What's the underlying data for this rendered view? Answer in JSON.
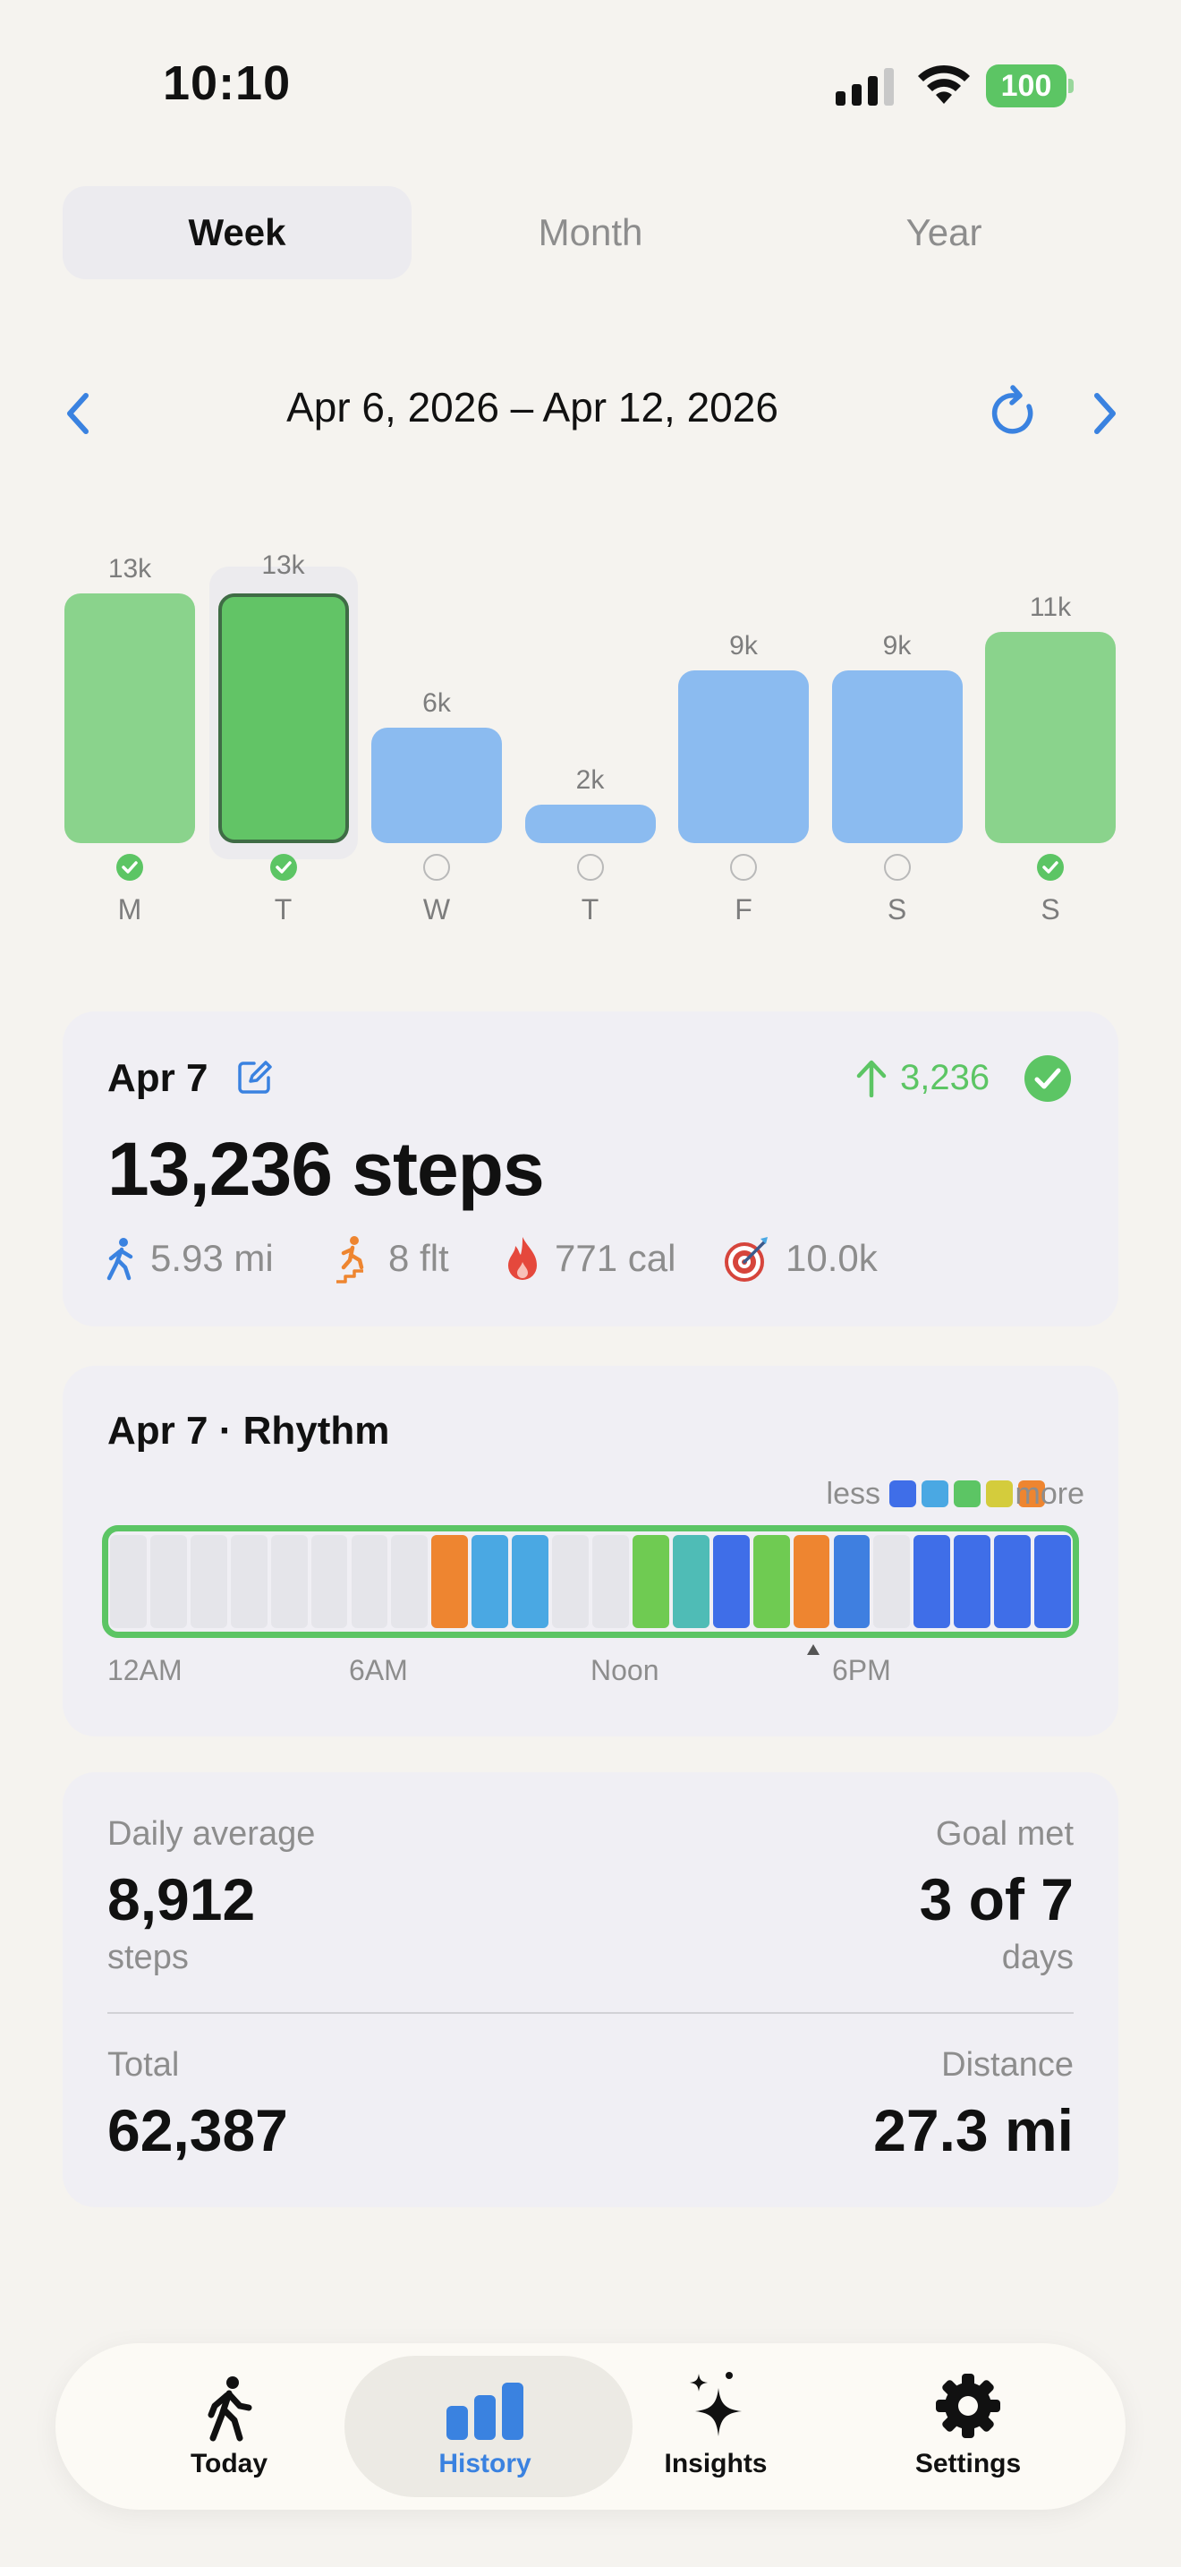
{
  "status": {
    "time": "10:10",
    "battery": "100"
  },
  "periods": [
    "Week",
    "Month",
    "Year"
  ],
  "active_period": "Week",
  "date_range": "Apr 6, 2026 – Apr 12, 2026",
  "chart_data": {
    "type": "bar",
    "categories": [
      "M",
      "T",
      "W",
      "T",
      "F",
      "S",
      "S"
    ],
    "values": [
      13,
      13,
      6,
      2,
      9,
      9,
      11
    ],
    "value_labels": [
      "13k",
      "13k",
      "6k",
      "2k",
      "9k",
      "9k",
      "11k"
    ],
    "goal_met": [
      true,
      true,
      false,
      false,
      false,
      false,
      true
    ],
    "selected_index": 1,
    "ylim": [
      0,
      14
    ]
  },
  "day_card": {
    "date": "Apr 7",
    "delta": "3,236",
    "steps": "13,236 steps",
    "distance": "5.93 mi",
    "floors": "8 flt",
    "calories": "771 cal",
    "goal": "10.0k"
  },
  "rhythm": {
    "title": "Apr 7 · Rhythm",
    "legend_less": "less",
    "legend_more": "more",
    "legend_colors": [
      "#3f6ee8",
      "#4aa8e3",
      "#5cc564",
      "#d4cc3c",
      "#ee8530"
    ],
    "levels": [
      0,
      0,
      0,
      0,
      0,
      0,
      0,
      0,
      5,
      2,
      2,
      0,
      0,
      3,
      2.5,
      1,
      3,
      5,
      1.5,
      0,
      1,
      1,
      1,
      1
    ],
    "axis_labels": [
      "12AM",
      "6AM",
      "Noon",
      "6PM"
    ]
  },
  "summary": {
    "daily_avg_label": "Daily average",
    "daily_avg_value": "8,912",
    "daily_avg_unit": "steps",
    "goal_met_label": "Goal met",
    "goal_met_value": "3 of 7",
    "goal_met_unit": "days",
    "total_label": "Total",
    "total_value": "62,387",
    "distance_label": "Distance",
    "distance_value": "27.3 mi"
  },
  "tabs": [
    "Today",
    "History",
    "Insights",
    "Settings"
  ],
  "active_tab": "History"
}
